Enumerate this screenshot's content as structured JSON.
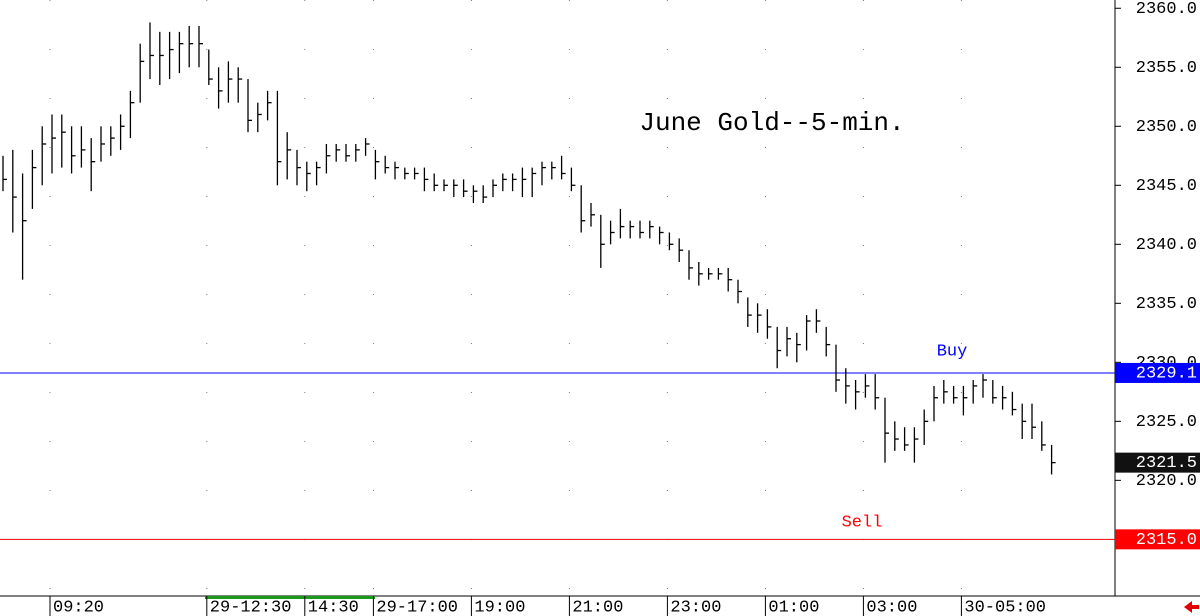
{
  "chart_data": {
    "type": "ohlc",
    "title": "June Gold--5-min.",
    "color": "#000000",
    "categories": [
      null,
      null,
      null,
      null,
      null,
      "09:20",
      null,
      null,
      null,
      null,
      null,
      null,
      null,
      null,
      null,
      null,
      null,
      null,
      null,
      null,
      null,
      "29-12:30",
      null,
      null,
      null,
      null,
      null,
      null,
      null,
      null,
      null,
      "14:30",
      null,
      null,
      null,
      null,
      null,
      null,
      "29-17:00",
      null,
      null,
      null,
      null,
      null,
      null,
      null,
      null,
      null,
      "19:00",
      null,
      null,
      null,
      null,
      null,
      null,
      null,
      null,
      null,
      "21:00",
      null,
      null,
      null,
      null,
      null,
      null,
      null,
      null,
      null,
      "23:00",
      null,
      null,
      null,
      null,
      null,
      null,
      null,
      null,
      null,
      "01:00",
      null,
      null,
      null,
      null,
      null,
      null,
      null,
      null,
      null,
      "03:00",
      null,
      null,
      null,
      null,
      null,
      null,
      null,
      null,
      null,
      "30-05:00",
      null,
      null,
      null,
      null,
      null,
      null,
      null,
      null,
      null
    ],
    "high": [
      2347.5,
      2348,
      2346,
      2348,
      2350,
      2351,
      2351,
      2350,
      2350,
      2349,
      2350,
      2350,
      2351,
      2353,
      2357,
      2358.8,
      2358,
      2358,
      2358,
      2358.5,
      2358.5,
      2356.5,
      2355,
      2355.5,
      2355,
      2354,
      2352,
      2353,
      2353,
      2349.5,
      2348,
      2347,
      2347,
      2348.5,
      2348.5,
      2348.5,
      2348.5,
      2349,
      2348,
      2347.5,
      2347,
      2346.5,
      2346.5,
      2346.5,
      2346,
      2345.5,
      2345.5,
      2345.5,
      2345,
      2345,
      2345.5,
      2346,
      2346,
      2346.5,
      2346.5,
      2347,
      2347,
      2347.5,
      2346.5,
      2345,
      2343.5,
      2342.5,
      2342,
      2343,
      2342,
      2342,
      2342,
      2341.5,
      2341,
      2340.5,
      2339.5,
      2338.5,
      2338,
      2338,
      2338,
      2337,
      2335.5,
      2335,
      2334.5,
      2333,
      2333,
      2332.5,
      2334,
      2334.5,
      2333,
      2331.5,
      2329.5,
      2328.5,
      2329,
      2329,
      2327,
      2325,
      2324.5,
      2324.5,
      2326,
      2328,
      2328.5,
      2328,
      2328,
      2328.5,
      2329,
      2328.5,
      2328,
      2327.5,
      2326.5,
      2326.5,
      2325,
      2323
    ],
    "low": [
      2344.5,
      2341,
      2337,
      2343,
      2345,
      2346,
      2346.5,
      2346,
      2346.5,
      2344.5,
      2347,
      2347.5,
      2348,
      2349,
      2352,
      2354,
      2353.5,
      2354,
      2354.5,
      2355,
      2355,
      2353.5,
      2351.5,
      2352,
      2352,
      2349.5,
      2349.5,
      2350.5,
      2345,
      2345.5,
      2345,
      2344.5,
      2345,
      2346,
      2347,
      2347,
      2347,
      2347.5,
      2345.5,
      2346,
      2345.5,
      2345.5,
      2345.5,
      2344.5,
      2344.5,
      2344.5,
      2344,
      2344,
      2343.5,
      2343.5,
      2344,
      2344.5,
      2344.5,
      2344,
      2344,
      2345,
      2345.5,
      2345.5,
      2344.5,
      2341,
      2341.5,
      2338,
      2340,
      2340.5,
      2340.5,
      2340.5,
      2340.5,
      2340,
      2339.5,
      2338.5,
      2337,
      2336.5,
      2337,
      2337,
      2336,
      2335,
      2333,
      2332.5,
      2332,
      2329.5,
      2330.5,
      2330,
      2331,
      2332.5,
      2330.5,
      2327.5,
      2326.5,
      2326,
      2327,
      2326,
      2321.5,
      2322.5,
      2322.5,
      2321.5,
      2323,
      2325,
      2326.5,
      2326.5,
      2325.5,
      2326.5,
      2327,
      2326.5,
      2326,
      2325.5,
      2323.5,
      2323.5,
      2322.5,
      2320.5
    ],
    "close": [
      2345.5,
      2344,
      2342,
      2346.5,
      2348.5,
      2349,
      2349.5,
      2347.5,
      2348,
      2347,
      2348.5,
      2349,
      2350,
      2352,
      2355.5,
      2356,
      2356,
      2356.5,
      2357,
      2357,
      2357,
      2354,
      2353,
      2354,
      2354,
      2350.5,
      2351,
      2352,
      2347,
      2348,
      2346.5,
      2346,
      2346.5,
      2347.5,
      2348,
      2347.5,
      2348,
      2348.5,
      2347,
      2346.5,
      2346.5,
      2346,
      2346,
      2345.5,
      2345,
      2345,
      2345,
      2344.5,
      2344.5,
      2344,
      2345,
      2345.5,
      2345.5,
      2345.5,
      2346,
      2346.5,
      2346.5,
      2346,
      2345,
      2342,
      2342.5,
      2340,
      2341,
      2341.5,
      2341.5,
      2341,
      2341.5,
      2341,
      2340,
      2339.5,
      2338,
      2337.5,
      2337.5,
      2337.5,
      2337,
      2336,
      2334,
      2334,
      2333,
      2331,
      2332,
      2331.5,
      2333.5,
      2333.5,
      2331.5,
      2328.5,
      2328,
      2327.5,
      2328,
      2327,
      2324,
      2323.5,
      2323,
      2323.5,
      2325,
      2327,
      2327.5,
      2327,
      2327,
      2328,
      2328.5,
      2327,
      2327,
      2326,
      2325,
      2324.5,
      2323,
      2321.5
    ],
    "ylim": [
      2310.2,
      2360.7
    ],
    "yticks": [
      {
        "value": 2320,
        "label": "2320.0"
      },
      {
        "value": 2325,
        "label": "2325.0"
      },
      {
        "value": 2330,
        "label": "2330.0"
      },
      {
        "value": 2335,
        "label": "2335.0"
      },
      {
        "value": 2340,
        "label": "2340.0"
      },
      {
        "value": 2345,
        "label": "2345.0"
      },
      {
        "value": 2350,
        "label": "2350.0"
      },
      {
        "value": 2355,
        "label": "2355.0"
      },
      {
        "value": 2360,
        "label": "2360.0"
      }
    ],
    "grid": true,
    "lines": [
      {
        "name": "Buy",
        "value": 2329.1,
        "color": "#0000ff"
      },
      {
        "name": "Sell",
        "value": 2315,
        "value_label": "2315.0",
        "color": "#ff0000"
      }
    ]
  }
}
